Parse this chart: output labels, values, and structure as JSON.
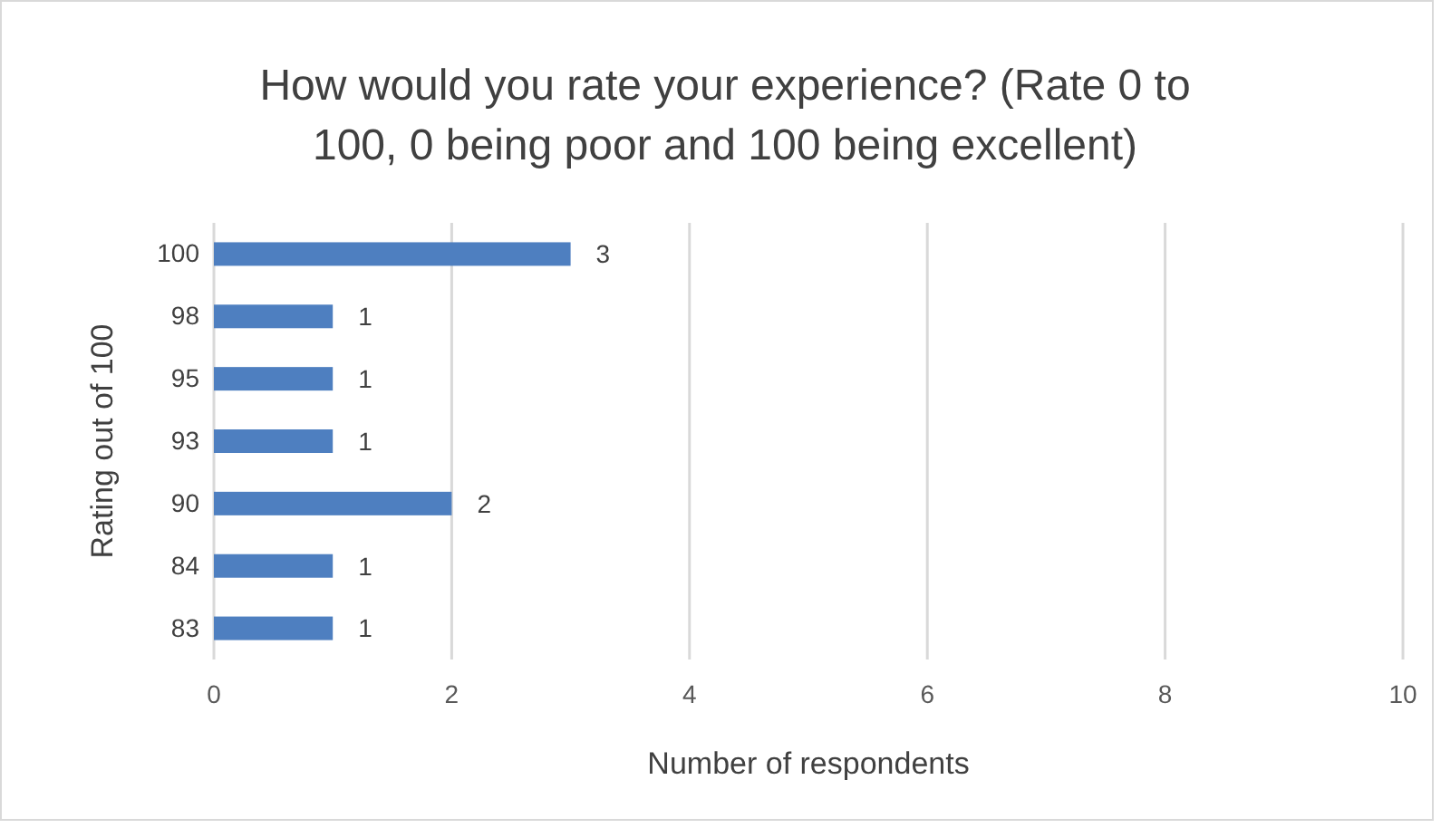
{
  "chart_data": {
    "type": "bar",
    "orientation": "horizontal",
    "title": "How would you rate your experience? (Rate 0 to 100, 0 being poor and 100 being excellent)",
    "xlabel": "Number of respondents",
    "ylabel": "Rating out of 100",
    "categories": [
      "100",
      "98",
      "95",
      "93",
      "90",
      "84",
      "83"
    ],
    "values": [
      3,
      1,
      1,
      1,
      2,
      1,
      1
    ],
    "color": "#4e7fc0",
    "xlim": [
      0,
      10
    ],
    "xticks": [
      0,
      2,
      4,
      6,
      8,
      10
    ],
    "grid": "x",
    "data_labels": true
  }
}
